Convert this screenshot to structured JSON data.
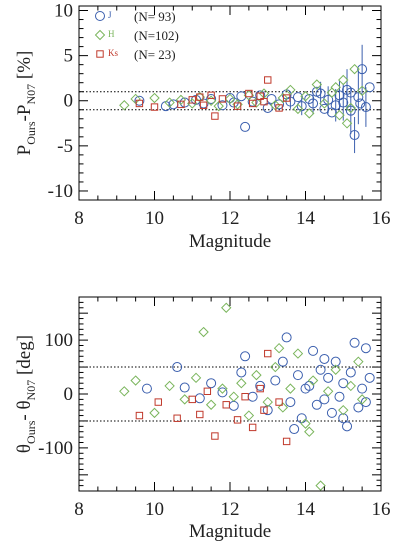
{
  "chart_data": [
    {
      "type": "scatter",
      "xlabel": "Magnitude",
      "ylabel": "P_{Ours} - P_{N07} [%]",
      "ylabel_parts": {
        "a": "P",
        "a_sub": "Ours",
        "dash": "-P",
        "b_sub": "N07",
        "unit": " [%]"
      },
      "xlim": [
        8,
        16
      ],
      "ylim": [
        -11,
        10.5
      ],
      "xticks": [
        8,
        10,
        12,
        14,
        16
      ],
      "yticks": [
        -10,
        -5,
        0,
        5,
        10
      ],
      "reference_lines": [
        -1,
        1
      ],
      "legend": [
        {
          "band": "J",
          "count_label": "(N= 93)",
          "color": "#3b5fae",
          "marker": "circle"
        },
        {
          "band": "H",
          "count_label": "(N=102)",
          "color": "#7ab55c",
          "marker": "diamond"
        },
        {
          "band": "Ks",
          "count_label": "(N= 23)",
          "color": "#c0392b",
          "marker": "square"
        }
      ],
      "series": [
        {
          "name": "J",
          "color": "#3b5fae",
          "marker": "circle",
          "points": [
            [
              9.6,
              0.0
            ],
            [
              10.3,
              -0.6
            ],
            [
              10.5,
              -0.4
            ],
            [
              10.8,
              -0.2
            ],
            [
              11.1,
              0.1
            ],
            [
              11.3,
              -0.3
            ],
            [
              11.5,
              0.2
            ],
            [
              11.8,
              -0.5
            ],
            [
              12.0,
              0.3
            ],
            [
              12.1,
              -0.2
            ],
            [
              12.3,
              0.5
            ],
            [
              12.4,
              -2.9
            ],
            [
              12.6,
              -0.1
            ],
            [
              12.8,
              0.6
            ],
            [
              13.0,
              -0.8
            ],
            [
              13.1,
              0.2
            ],
            [
              13.3,
              -0.4
            ],
            [
              13.5,
              0.7
            ],
            [
              13.6,
              -0.1
            ],
            [
              13.8,
              0.4
            ],
            [
              13.9,
              -0.6
            ],
            [
              14.1,
              0.2
            ],
            [
              14.2,
              -0.3
            ],
            [
              14.4,
              0.8
            ],
            [
              14.5,
              -0.9
            ],
            [
              14.6,
              0.1
            ],
            [
              14.8,
              -0.5
            ],
            [
              14.9,
              0.6
            ],
            [
              15.0,
              -0.2
            ],
            [
              15.1,
              1.2
            ],
            [
              15.2,
              -1.1
            ],
            [
              15.3,
              -3.8
            ],
            [
              15.4,
              0.4
            ],
            [
              15.5,
              3.5
            ],
            [
              15.6,
              -0.7
            ],
            [
              15.7,
              1.5
            ],
            [
              15.2,
              0.9
            ],
            [
              14.7,
              -1.3
            ],
            [
              14.3,
              1.0
            ],
            [
              15.45,
              -0.3
            ]
          ],
          "errors": [
            [
              13.6,
              0.8
            ],
            [
              13.9,
              1.0
            ],
            [
              14.2,
              1.2
            ],
            [
              14.4,
              1.3
            ],
            [
              14.6,
              1.5
            ],
            [
              14.8,
              1.8
            ],
            [
              14.9,
              1.6
            ],
            [
              15.0,
              2.0
            ],
            [
              15.1,
              2.3
            ],
            [
              15.2,
              2.6
            ],
            [
              15.3,
              2.0
            ],
            [
              15.4,
              3.0
            ],
            [
              15.5,
              2.7
            ],
            [
              15.6,
              2.2
            ]
          ]
        },
        {
          "name": "H",
          "color": "#7ab55c",
          "marker": "diamond",
          "points": [
            [
              9.2,
              -0.5
            ],
            [
              9.5,
              0.2
            ],
            [
              10.0,
              0.3
            ],
            [
              10.4,
              -0.2
            ],
            [
              10.7,
              0.1
            ],
            [
              11.0,
              -0.3
            ],
            [
              11.2,
              0.4
            ],
            [
              11.5,
              0.0
            ],
            [
              11.7,
              -0.6
            ],
            [
              12.0,
              0.2
            ],
            [
              12.2,
              -0.4
            ],
            [
              12.5,
              0.6
            ],
            [
              12.7,
              -0.2
            ],
            [
              12.9,
              0.8
            ],
            [
              13.2,
              -0.5
            ],
            [
              13.4,
              0.3
            ],
            [
              13.6,
              1.2
            ],
            [
              13.8,
              -0.9
            ],
            [
              14.0,
              0.5
            ],
            [
              14.1,
              -1.4
            ],
            [
              14.3,
              1.8
            ],
            [
              14.5,
              -0.3
            ],
            [
              14.7,
              0.9
            ],
            [
              14.9,
              -1.6
            ],
            [
              15.0,
              2.3
            ],
            [
              15.2,
              -0.8
            ],
            [
              15.3,
              3.5
            ],
            [
              15.5,
              1.1
            ],
            [
              15.1,
              -2.5
            ],
            [
              14.8,
              1.5
            ]
          ]
        },
        {
          "name": "Ks",
          "color": "#c0392b",
          "marker": "square",
          "points": [
            [
              9.6,
              -0.3
            ],
            [
              10.0,
              -0.7
            ],
            [
              10.7,
              -0.4
            ],
            [
              11.0,
              0.1
            ],
            [
              11.2,
              0.4
            ],
            [
              11.5,
              0.6
            ],
            [
              11.6,
              -1.7
            ],
            [
              11.8,
              0.2
            ],
            [
              12.2,
              -0.6
            ],
            [
              12.5,
              0.8
            ],
            [
              12.6,
              -0.3
            ],
            [
              12.8,
              0.5
            ],
            [
              13.0,
              2.3
            ],
            [
              13.3,
              -0.8
            ],
            [
              13.5,
              0.3
            ],
            [
              12.9,
              -0.1
            ],
            [
              11.3,
              -0.5
            ]
          ]
        }
      ]
    },
    {
      "type": "scatter",
      "xlabel": "Magnitude",
      "ylabel": "θ_{Ours} - θ_{N07} [deg]",
      "ylabel_parts": {
        "a": "θ",
        "a_sub": "Ours",
        "dash": "- θ",
        "b_sub": "N07",
        "unit": " [deg]"
      },
      "xlim": [
        8,
        16
      ],
      "ylim": [
        -180,
        180
      ],
      "xticks": [
        8,
        10,
        12,
        14,
        16
      ],
      "yticks": [
        -100,
        0,
        100
      ],
      "reference_lines": [
        -50,
        50
      ],
      "series": [
        {
          "name": "J",
          "color": "#3b5fae",
          "marker": "circle",
          "points": [
            [
              9.8,
              10
            ],
            [
              10.6,
              50
            ],
            [
              10.8,
              12
            ],
            [
              11.2,
              -8
            ],
            [
              11.5,
              20
            ],
            [
              11.8,
              3
            ],
            [
              12.1,
              -22
            ],
            [
              12.3,
              40
            ],
            [
              12.4,
              70
            ],
            [
              12.6,
              -5
            ],
            [
              12.8,
              15
            ],
            [
              13.0,
              -30
            ],
            [
              13.2,
              25
            ],
            [
              13.4,
              60
            ],
            [
              13.5,
              105
            ],
            [
              13.6,
              -15
            ],
            [
              13.8,
              35
            ],
            [
              13.9,
              -45
            ],
            [
              14.0,
              10
            ],
            [
              14.2,
              80
            ],
            [
              14.3,
              -20
            ],
            [
              14.4,
              45
            ],
            [
              14.5,
              -10
            ],
            [
              14.6,
              30
            ],
            [
              14.7,
              -35
            ],
            [
              14.8,
              60
            ],
            [
              14.9,
              -5
            ],
            [
              15.0,
              20
            ],
            [
              15.1,
              -60
            ],
            [
              15.2,
              40
            ],
            [
              15.3,
              95
            ],
            [
              15.4,
              -25
            ],
            [
              15.5,
              10
            ],
            [
              15.6,
              -15
            ],
            [
              15.7,
              30
            ],
            [
              13.7,
              -65
            ],
            [
              14.1,
              15
            ],
            [
              14.5,
              65
            ],
            [
              15.0,
              -45
            ],
            [
              15.6,
              85
            ]
          ]
        },
        {
          "name": "H",
          "color": "#7ab55c",
          "marker": "diamond",
          "points": [
            [
              9.2,
              5
            ],
            [
              9.5,
              25
            ],
            [
              10.0,
              -35
            ],
            [
              10.4,
              15
            ],
            [
              10.8,
              -10
            ],
            [
              11.1,
              30
            ],
            [
              11.3,
              115
            ],
            [
              11.5,
              -20
            ],
            [
              11.8,
              10
            ],
            [
              11.9,
              160
            ],
            [
              12.1,
              -5
            ],
            [
              12.3,
              20
            ],
            [
              12.5,
              -40
            ],
            [
              12.7,
              35
            ],
            [
              13.0,
              -15
            ],
            [
              13.2,
              50
            ],
            [
              13.4,
              -25
            ],
            [
              13.6,
              10
            ],
            [
              13.8,
              75
            ],
            [
              14.0,
              -55
            ],
            [
              14.2,
              25
            ],
            [
              14.4,
              -170
            ],
            [
              14.6,
              5
            ],
            [
              14.8,
              45
            ],
            [
              15.0,
              -30
            ],
            [
              15.2,
              15
            ],
            [
              15.4,
              60
            ],
            [
              15.5,
              -10
            ],
            [
              14.1,
              -70
            ],
            [
              13.3,
              85
            ]
          ]
        },
        {
          "name": "Ks",
          "color": "#c0392b",
          "marker": "square",
          "points": [
            [
              9.6,
              -40
            ],
            [
              10.1,
              -15
            ],
            [
              10.6,
              -45
            ],
            [
              11.0,
              -10
            ],
            [
              11.2,
              -38
            ],
            [
              11.4,
              5
            ],
            [
              11.6,
              -78
            ],
            [
              11.9,
              -20
            ],
            [
              12.2,
              -48
            ],
            [
              12.4,
              -5
            ],
            [
              12.6,
              -62
            ],
            [
              12.8,
              10
            ],
            [
              13.0,
              75
            ],
            [
              13.3,
              -15
            ],
            [
              13.5,
              -88
            ],
            [
              12.9,
              -30
            ]
          ]
        }
      ]
    }
  ]
}
